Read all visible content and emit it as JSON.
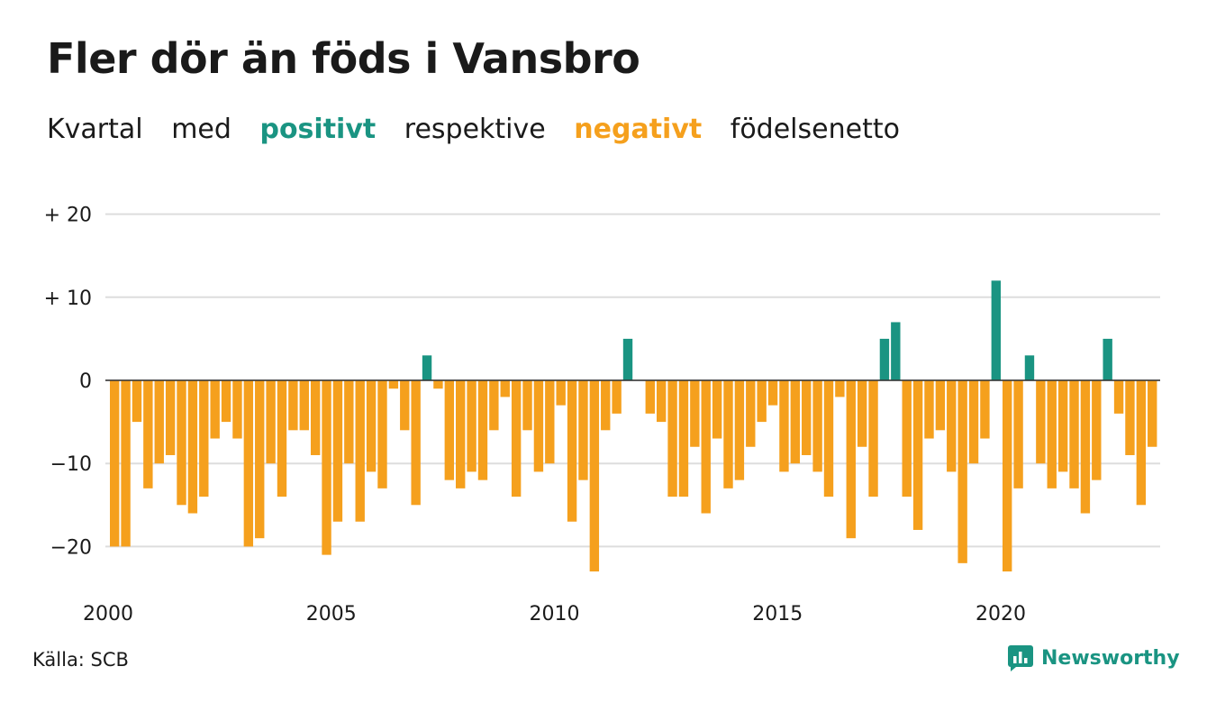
{
  "title": "Fler dör än föds i Vansbro",
  "subtitle": {
    "part1": "Kvartal",
    "part2": "med",
    "positive": "positivt",
    "part3": "respektive",
    "negative": "negativt",
    "part4": "födelsenetto"
  },
  "source": "Källa: SCB",
  "logo": "Newsworthy",
  "colors": {
    "positive": "#1a9482",
    "negative": "#f5a01d",
    "grid": "#dddddd"
  },
  "chart_data": {
    "type": "bar",
    "x_start": "2000 Q1",
    "frequency": "quarterly",
    "y_ticks": [
      {
        "value": 20,
        "label": "+ 20"
      },
      {
        "value": 10,
        "label": "+ 10"
      },
      {
        "value": 0,
        "label": "0"
      },
      {
        "value": -10,
        "label": "−10"
      },
      {
        "value": -20,
        "label": "−20"
      }
    ],
    "x_ticks": [
      "2000",
      "2005",
      "2010",
      "2015",
      "2020"
    ],
    "ylim": [
      -25,
      20
    ],
    "grid": true,
    "values": [
      -20,
      -20,
      -5,
      -13,
      -10,
      -9,
      -15,
      -16,
      -14,
      -7,
      -5,
      -7,
      -20,
      -19,
      -10,
      -14,
      -6,
      -6,
      -9,
      -21,
      -17,
      -10,
      -17,
      -11,
      -13,
      -1,
      -6,
      -15,
      3,
      -1,
      -12,
      -13,
      -11,
      -12,
      -6,
      -2,
      -14,
      -6,
      -11,
      -10,
      -3,
      -17,
      -12,
      -23,
      -6,
      -4,
      5,
      0,
      -4,
      -5,
      -14,
      -14,
      -8,
      -16,
      -7,
      -13,
      -12,
      -8,
      -5,
      -3,
      -11,
      -10,
      -9,
      -11,
      -14,
      -2,
      -19,
      -8,
      -14,
      5,
      7,
      -14,
      -18,
      -7,
      -6,
      -11,
      -22,
      -10,
      -7,
      12,
      -23,
      -13,
      3,
      -10,
      -13,
      -11,
      -13,
      -16,
      -12,
      5,
      -4,
      -9,
      -15,
      -8
    ]
  }
}
